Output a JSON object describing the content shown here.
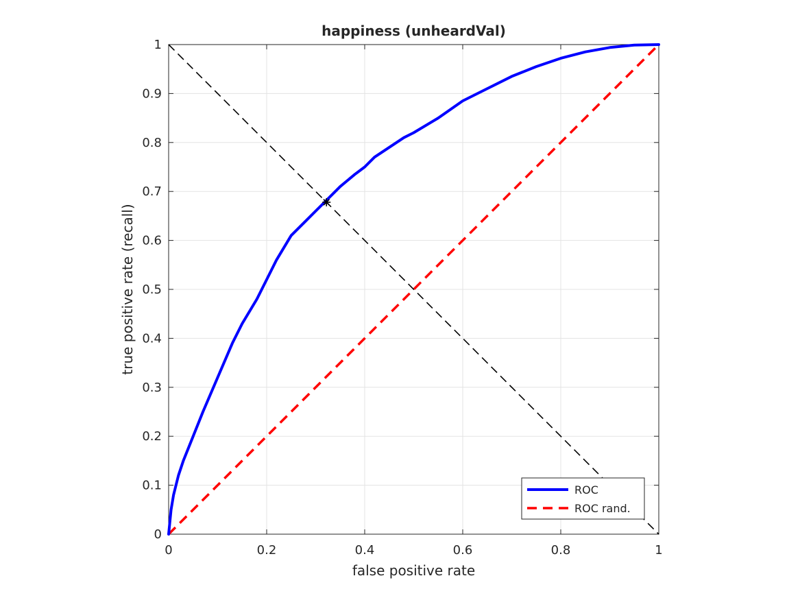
{
  "chart_data": {
    "type": "line",
    "title": "happiness (unheardVal)",
    "xlabel": "false positive rate",
    "ylabel": "true positive rate (recall)",
    "xlim": [
      0,
      1
    ],
    "ylim": [
      0,
      1
    ],
    "xticks": [
      0,
      0.2,
      0.4,
      0.6,
      0.8,
      1
    ],
    "xtick_labels": [
      "0",
      "0.2",
      "0.4",
      "0.6",
      "0.8",
      "1"
    ],
    "yticks": [
      0,
      0.1,
      0.2,
      0.3,
      0.4,
      0.5,
      0.6,
      0.7,
      0.8,
      0.9,
      1
    ],
    "ytick_labels": [
      "0",
      "0.1",
      "0.2",
      "0.3",
      "0.4",
      "0.5",
      "0.6",
      "0.7",
      "0.8",
      "0.9",
      "1"
    ],
    "grid": true,
    "legend_position": "bottom-right",
    "series": [
      {
        "name": "ROC",
        "color": "#0000ff",
        "style": "solid",
        "x": [
          0,
          0.005,
          0.01,
          0.02,
          0.03,
          0.05,
          0.07,
          0.1,
          0.13,
          0.15,
          0.18,
          0.2,
          0.22,
          0.25,
          0.28,
          0.3,
          0.32,
          0.35,
          0.38,
          0.4,
          0.42,
          0.45,
          0.48,
          0.5,
          0.55,
          0.6,
          0.65,
          0.7,
          0.75,
          0.8,
          0.85,
          0.9,
          0.95,
          1.0
        ],
        "y": [
          0,
          0.05,
          0.08,
          0.12,
          0.15,
          0.2,
          0.25,
          0.32,
          0.39,
          0.43,
          0.48,
          0.52,
          0.56,
          0.61,
          0.64,
          0.66,
          0.68,
          0.71,
          0.735,
          0.75,
          0.77,
          0.79,
          0.81,
          0.82,
          0.85,
          0.885,
          0.91,
          0.935,
          0.955,
          0.972,
          0.985,
          0.994,
          0.999,
          1.0
        ]
      },
      {
        "name": "ROC rand.",
        "color": "#ff0000",
        "style": "dashed",
        "x": [
          0,
          1
        ],
        "y": [
          0,
          1
        ]
      }
    ],
    "reference_line": {
      "color": "#000000",
      "style": "dashed",
      "x": [
        0,
        1
      ],
      "y": [
        1,
        0
      ]
    },
    "marker": {
      "x": 0.322,
      "y": 0.678,
      "symbol": "asterisk",
      "color": "#000000"
    }
  }
}
